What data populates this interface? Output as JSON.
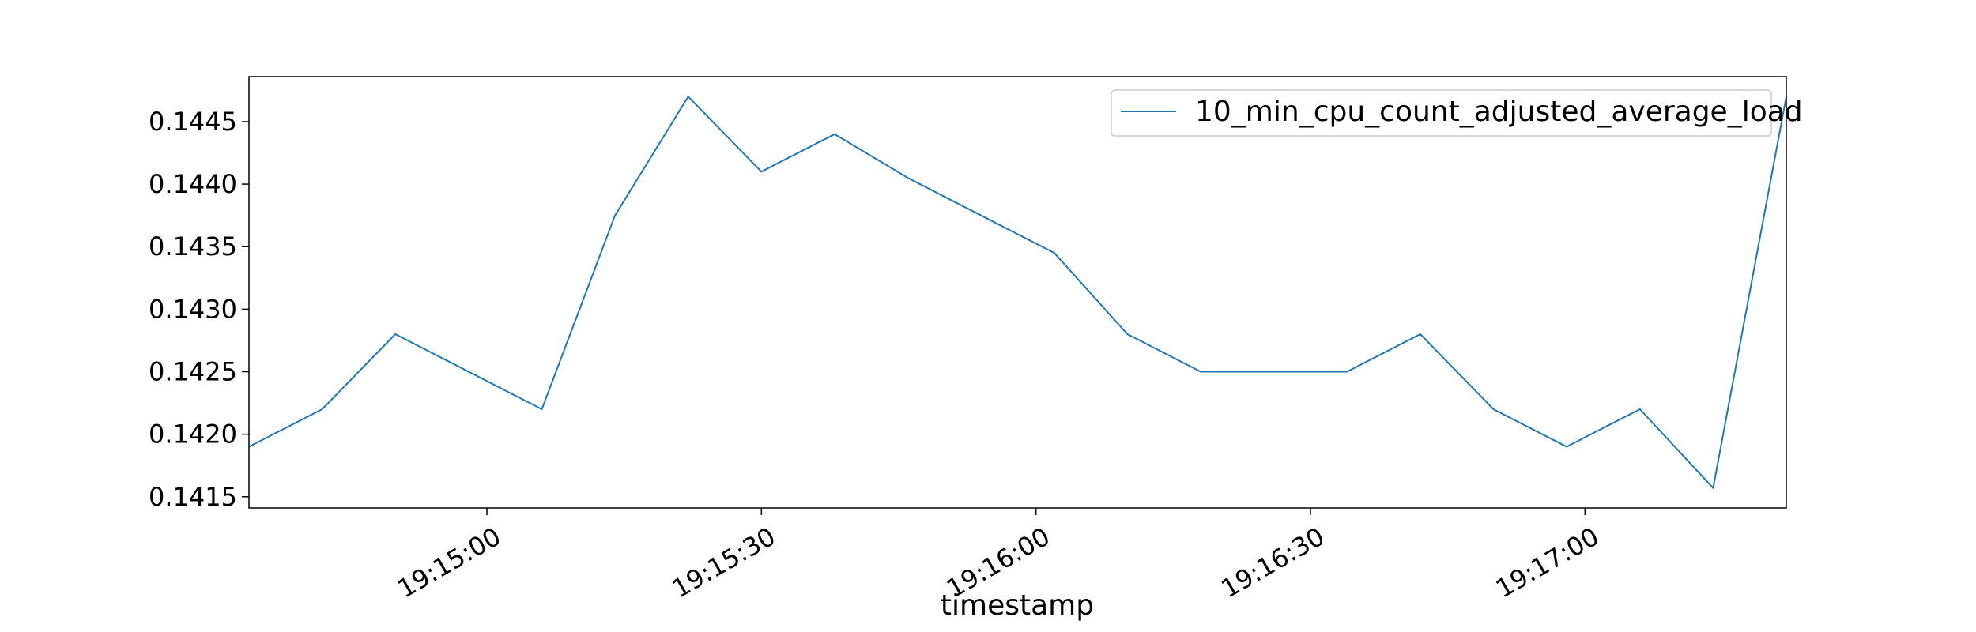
{
  "chart_data": {
    "type": "line",
    "xlabel": "timestamp",
    "ylabel": "",
    "title": "",
    "x_ticks": [
      "19:15:00",
      "19:15:30",
      "19:16:00",
      "19:16:30",
      "19:17:00"
    ],
    "x_tick_seconds": [
      900,
      930,
      960,
      990,
      1020
    ],
    "y_ticks": [
      "0.1415",
      "0.1420",
      "0.1425",
      "0.1430",
      "0.1435",
      "0.1440",
      "0.1445"
    ],
    "xlim": [
      "19:14:34",
      "19:17:22"
    ],
    "ylim": [
      0.14141,
      0.14486
    ],
    "grid": false,
    "legend_position": "top-right",
    "series": [
      {
        "name": "10_min_cpu_count_adjusted_average_load",
        "color": "#1f77b4",
        "x": [
          "19:14:34",
          "19:14:42",
          "19:14:50",
          "19:14:58",
          "19:15:06",
          "19:15:14",
          "19:15:22",
          "19:15:30",
          "19:15:38",
          "19:15:46",
          "19:15:54",
          "19:16:02",
          "19:16:10",
          "19:16:18",
          "19:16:26",
          "19:16:34",
          "19:16:42",
          "19:16:50",
          "19:16:58",
          "19:17:06",
          "19:17:14",
          "19:17:22"
        ],
        "values": [
          0.1419,
          0.1422,
          0.1428,
          0.1425,
          0.1422,
          0.14375,
          0.1447,
          0.1441,
          0.1444,
          0.14405,
          0.14375,
          0.14345,
          0.1428,
          0.1425,
          0.1425,
          0.1425,
          0.1428,
          0.1422,
          0.1419,
          0.1422,
          0.14157,
          0.1447
        ]
      }
    ]
  }
}
